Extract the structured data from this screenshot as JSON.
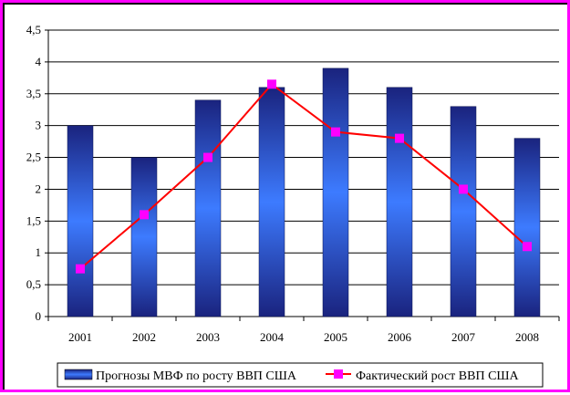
{
  "chart_data": {
    "type": "bar",
    "categories": [
      "2001",
      "2002",
      "2003",
      "2004",
      "2005",
      "2006",
      "2007",
      "2008"
    ],
    "series": [
      {
        "name": "Прогнозы МВФ по росту ВВП США",
        "type": "bar",
        "values": [
          3.0,
          2.5,
          3.4,
          3.6,
          3.9,
          3.6,
          3.3,
          2.8
        ]
      },
      {
        "name": "Фактический рост ВВП США",
        "type": "line",
        "values": [
          0.75,
          1.6,
          2.5,
          3.65,
          2.9,
          2.8,
          2.0,
          1.1
        ]
      }
    ],
    "ylim": [
      0,
      4.5
    ],
    "y_ticks": [
      "0",
      "0,5",
      "1",
      "1,5",
      "2",
      "2,5",
      "3",
      "3,5",
      "4",
      "4,5"
    ],
    "grid": true,
    "legend_position": "bottom",
    "colors": {
      "frame": "#ff00ff",
      "bar_dark": "#1a237e",
      "bar_light": "#3d7bff",
      "line": "#ff0000",
      "marker": "#ff00ff"
    }
  }
}
